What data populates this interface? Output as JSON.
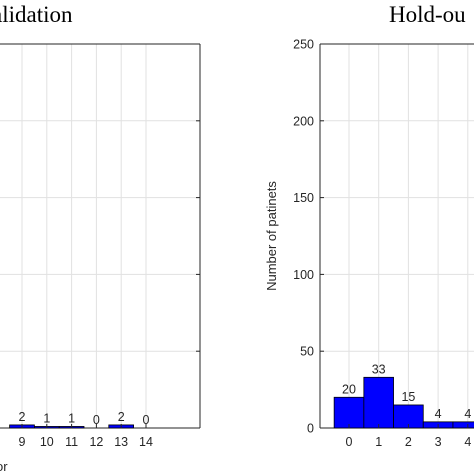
{
  "titles": {
    "left": "alidation",
    "right": "Hold-ou"
  },
  "chart_data": [
    {
      "type": "bar",
      "title": "alidation",
      "xlabel": "or",
      "ylabel": "",
      "categories": [
        "9",
        "10",
        "11",
        "12",
        "13",
        "14"
      ],
      "values": [
        2,
        1,
        1,
        0,
        2,
        0
      ],
      "data_labels": [
        "2",
        "1",
        "1",
        "0",
        "2",
        "0"
      ],
      "ylim": [
        0,
        250
      ],
      "grid": true,
      "bar_color": "#0000ff"
    },
    {
      "type": "bar",
      "title": "Hold-ou",
      "xlabel": "",
      "ylabel": "Number of patinets",
      "categories": [
        "0",
        "1",
        "2",
        "3",
        "4"
      ],
      "values": [
        20,
        33,
        15,
        4,
        4
      ],
      "data_labels": [
        "20",
        "33",
        "15",
        "4",
        "4"
      ],
      "yticks": [
        "0",
        "50",
        "100",
        "150",
        "200",
        "250"
      ],
      "ylim": [
        0,
        250
      ],
      "grid": true,
      "bar_color": "#0000ff"
    }
  ]
}
